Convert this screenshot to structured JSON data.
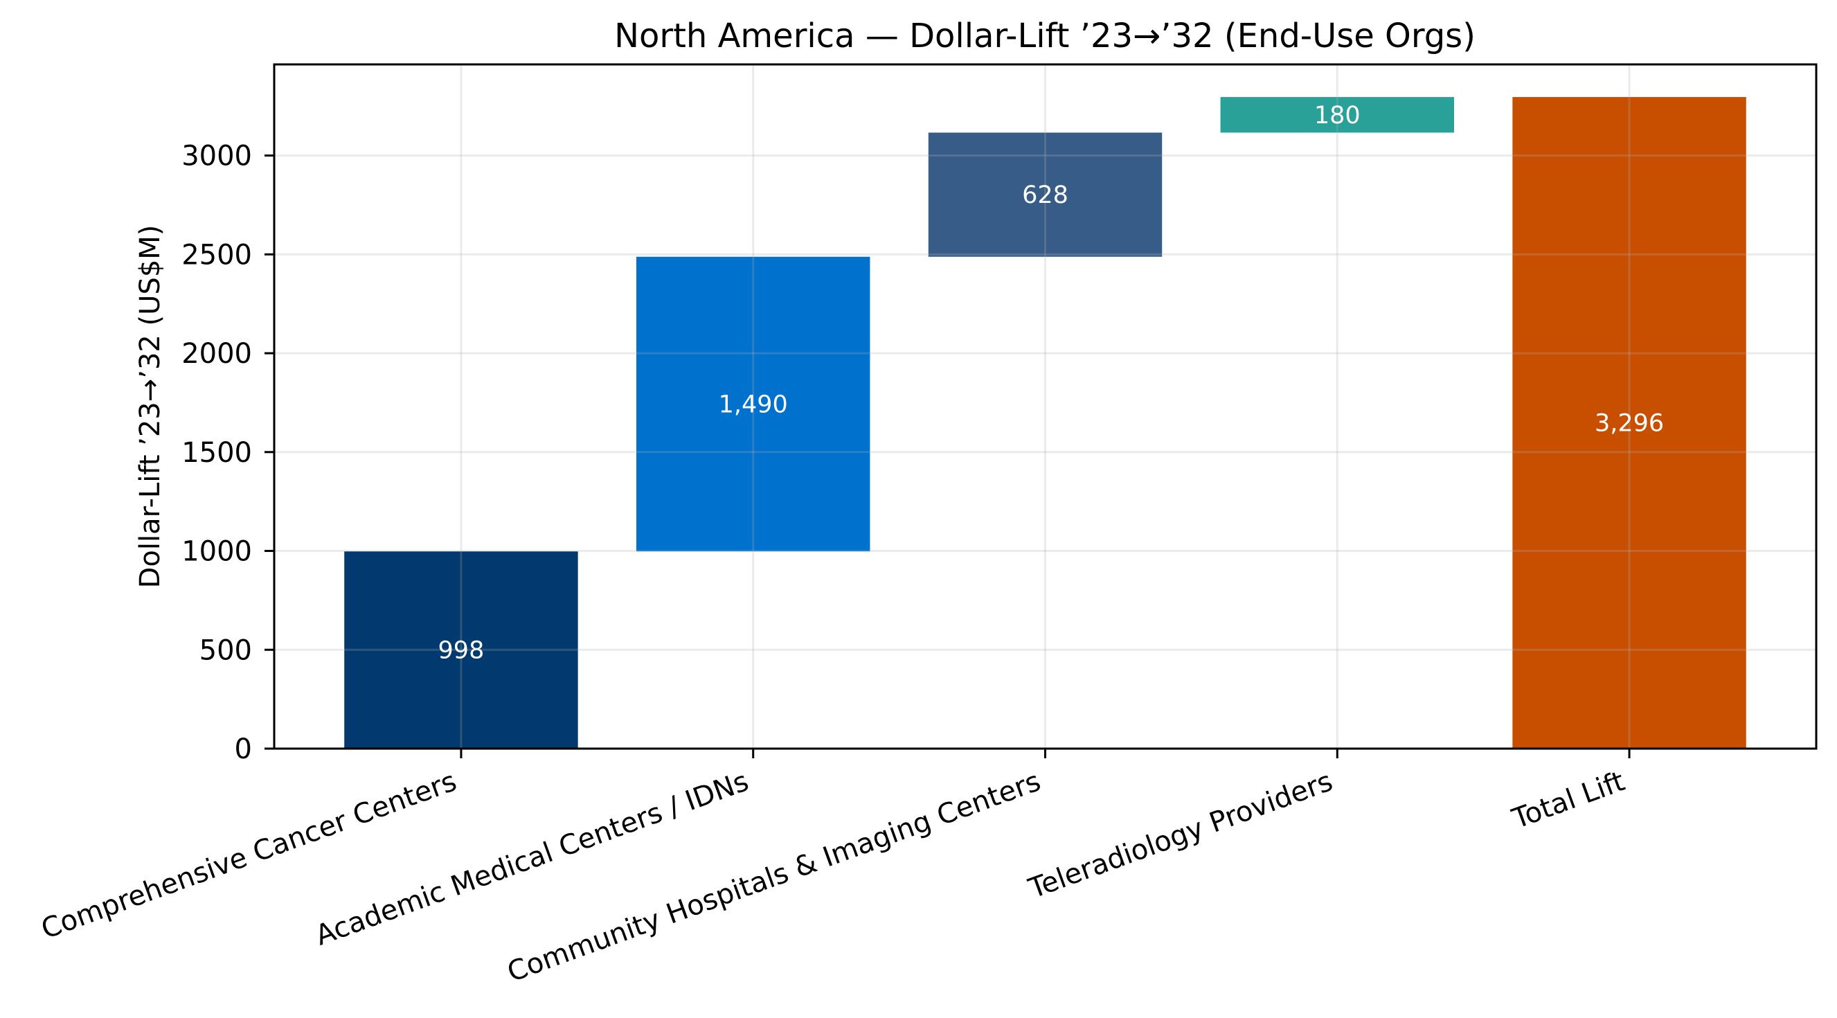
{
  "chart_data": {
    "type": "bar",
    "subtype": "waterfall",
    "title": "North America — Dollar-Lift ’23→’32 (End-Use Orgs)",
    "xlabel": "",
    "ylabel": "Dollar-Lift ’23→’32 (US$M)",
    "categories": [
      "Comprehensive Cancer Centers",
      "Academic Medical Centers / IDNs",
      "Community Hospitals & Imaging Centers",
      "Teleradiology Providers",
      "Total Lift"
    ],
    "values": [
      998,
      1490,
      628,
      180,
      3296
    ],
    "bases": [
      0,
      998,
      2488,
      3116,
      0
    ],
    "data_labels": [
      "998",
      "1,490",
      "628",
      "180",
      "3,296"
    ],
    "colors": [
      "#02396e",
      "#0071cc",
      "#365c87",
      "#2aa198",
      "#c84f00"
    ],
    "ylim": [
      0,
      3461
    ],
    "xlim": [
      -0.64,
      4.64
    ],
    "yticks": [
      0,
      500,
      1000,
      1500,
      2000,
      2500,
      3000
    ],
    "ytick_labels": [
      "0",
      "500",
      "1000",
      "1500",
      "2000",
      "2500",
      "3000"
    ],
    "grid": true,
    "legend": "none"
  }
}
